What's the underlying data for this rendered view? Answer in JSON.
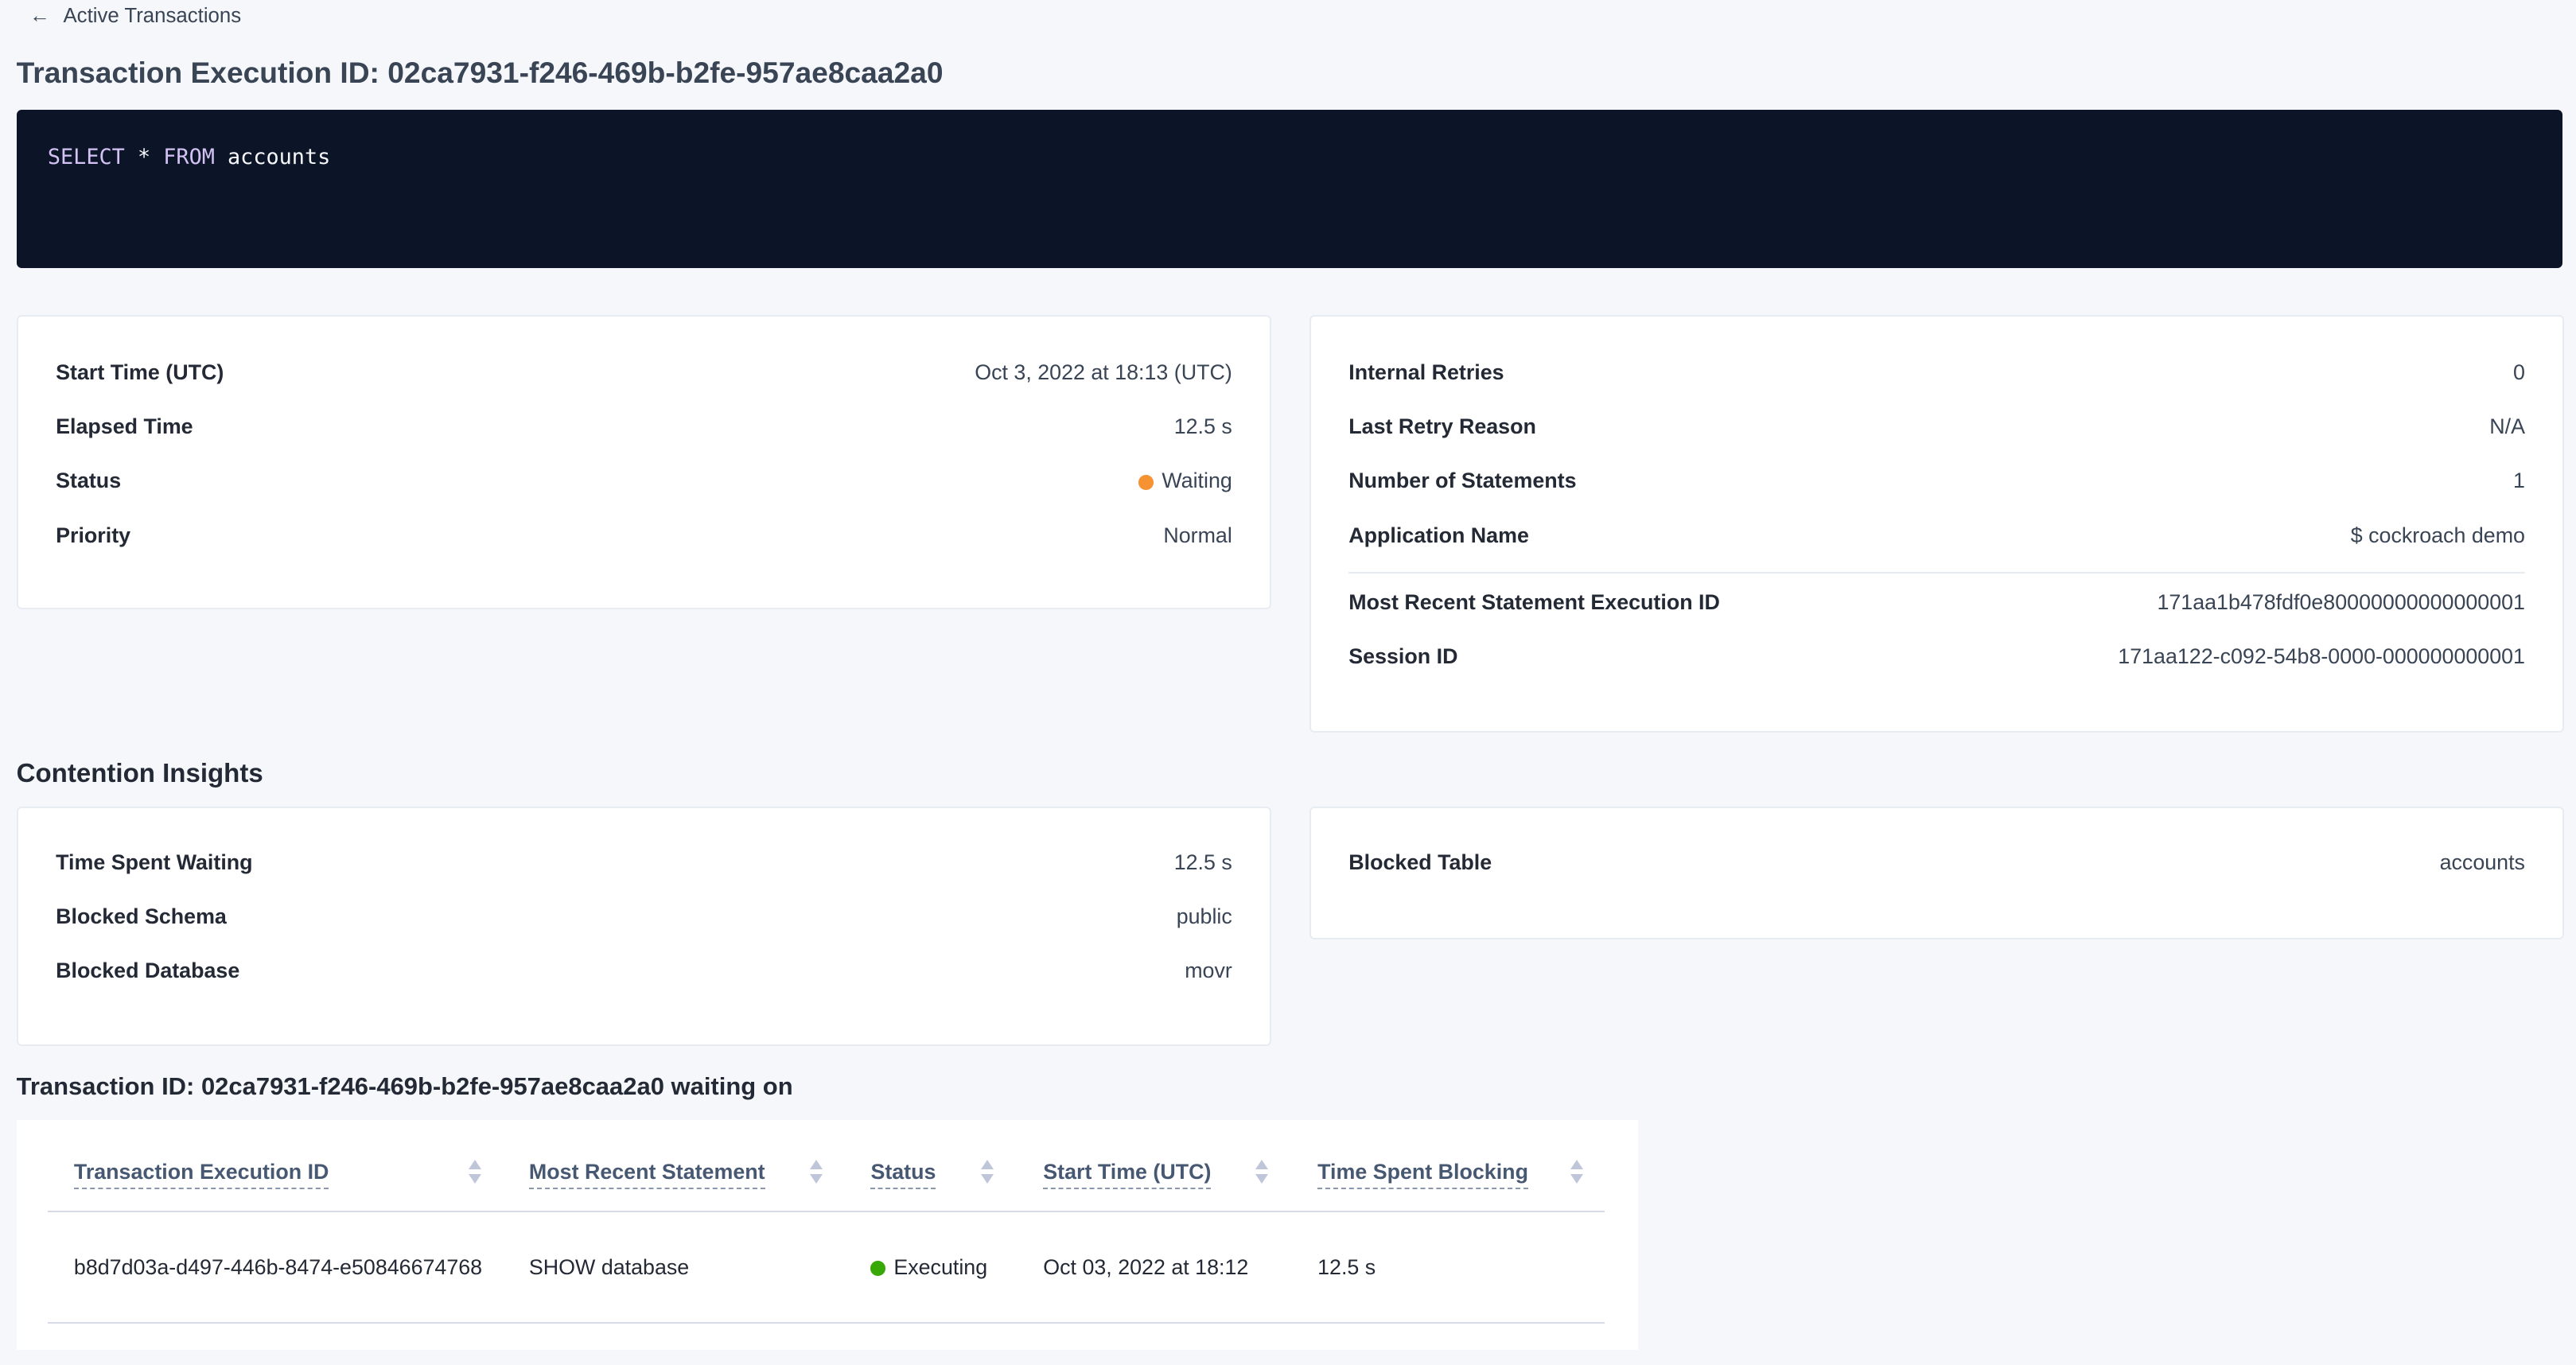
{
  "breadcrumb": {
    "label": "Active Transactions",
    "icon": "arrow-left-icon"
  },
  "page_title": "Transaction Execution ID: 02ca7931-f246-469b-b2fe-957ae8caa2a0",
  "sql": {
    "kw1": "SELECT",
    "star": "*",
    "kw2": "FROM",
    "table": "accounts"
  },
  "summary_left": [
    {
      "label": "Start Time (UTC)",
      "value": "Oct 3, 2022 at 18:13 (UTC)"
    },
    {
      "label": "Elapsed Time",
      "value": "12.5 s"
    },
    {
      "label": "Status",
      "value": "Waiting",
      "status_color": "#f79232"
    },
    {
      "label": "Priority",
      "value": "Normal"
    }
  ],
  "summary_right": [
    {
      "label": "Internal Retries",
      "value": "0"
    },
    {
      "label": "Last Retry Reason",
      "value": "N/A"
    },
    {
      "label": "Number of Statements",
      "value": "1"
    },
    {
      "label": "Application Name",
      "value": "$ cockroach demo"
    },
    {
      "label": "Most Recent Statement Execution ID",
      "value": "171aa1b478fdf0e80000000000000001"
    },
    {
      "label": "Session ID",
      "value": "171aa122-c092-54b8-0000-000000000001"
    }
  ],
  "contention": {
    "heading": "Contention Insights",
    "left": [
      {
        "label": "Time Spent Waiting",
        "value": "12.5 s"
      },
      {
        "label": "Blocked Schema",
        "value": "public"
      },
      {
        "label": "Blocked Database",
        "value": "movr"
      }
    ],
    "right": [
      {
        "label": "Blocked Table",
        "value": "accounts"
      }
    ]
  },
  "waiting": {
    "heading": "Transaction ID: 02ca7931-f246-469b-b2fe-957ae8caa2a0 waiting on",
    "columns": [
      "Transaction Execution ID",
      "Most Recent Statement",
      "Status",
      "Start Time (UTC)",
      "Time Spent Blocking"
    ],
    "rows": [
      {
        "id": "b8d7d03a-d497-446b-8474-e50846674768",
        "statement": "SHOW database",
        "status": "Executing",
        "status_color": "#37a806",
        "start": "Oct 03, 2022 at 18:12",
        "blocking": "12.5 s"
      }
    ]
  },
  "colors": {
    "link": "#0055ff",
    "code_bg": "#0c1527",
    "keyword": "#d4c2f5"
  }
}
